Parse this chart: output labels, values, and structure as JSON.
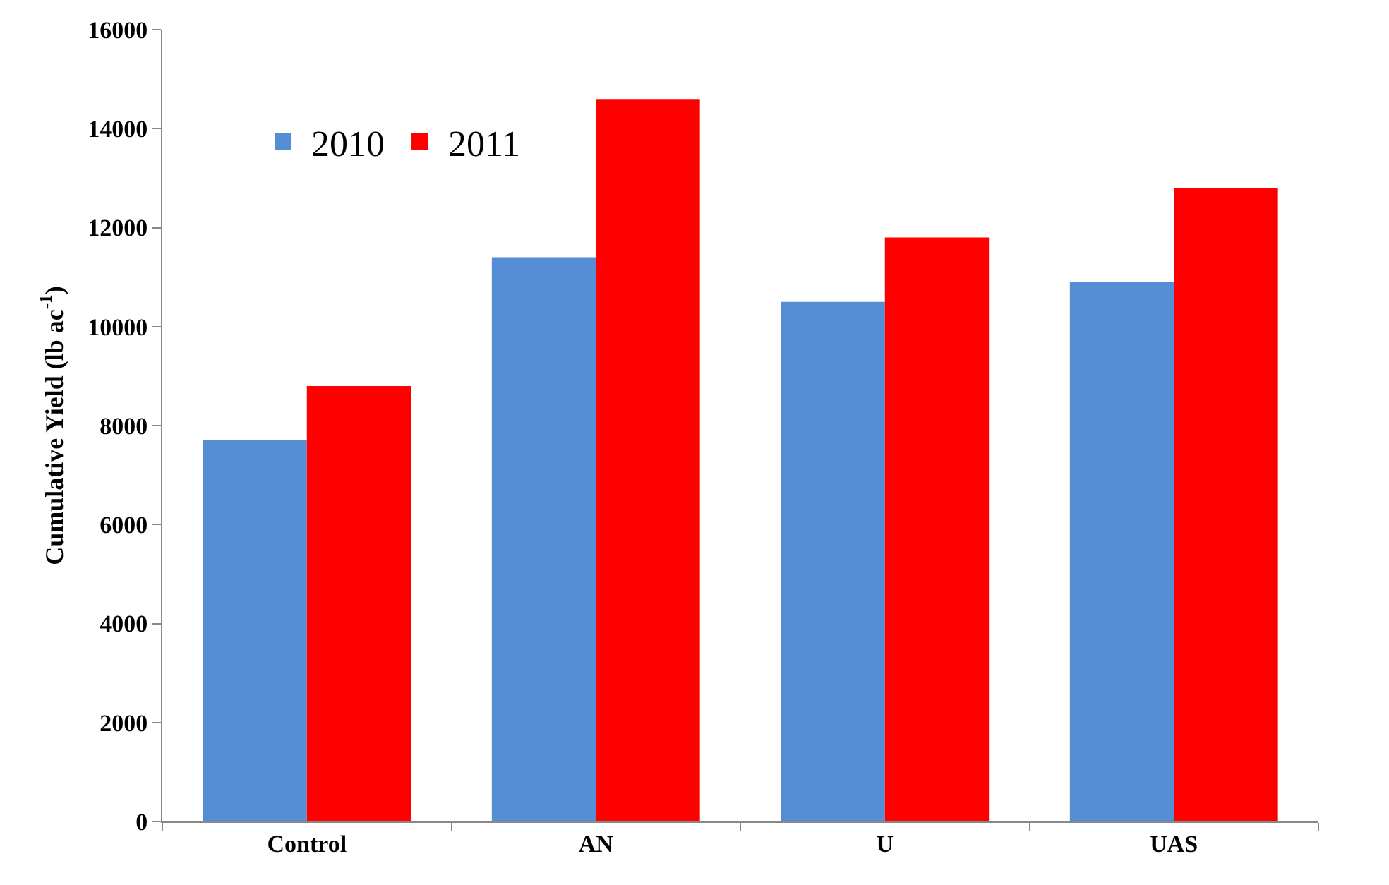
{
  "chart_data": {
    "type": "bar",
    "ylabel": "Cumulative Yield (lb ac$^{-1}$)",
    "categories": [
      "Control",
      "AN",
      "U",
      "UAS"
    ],
    "series": [
      {
        "name": "2010",
        "color": "#558ed5",
        "values": [
          7700,
          11400,
          10500,
          10900
        ]
      },
      {
        "name": "2011",
        "color": "#ff0000",
        "values": [
          8800,
          14600,
          11800,
          12800
        ]
      }
    ],
    "ylim": [
      0,
      16000
    ],
    "yticks": [
      0,
      2000,
      4000,
      6000,
      8000,
      10000,
      12000,
      14000,
      16000
    ],
    "grid": false,
    "legend": "top left"
  }
}
